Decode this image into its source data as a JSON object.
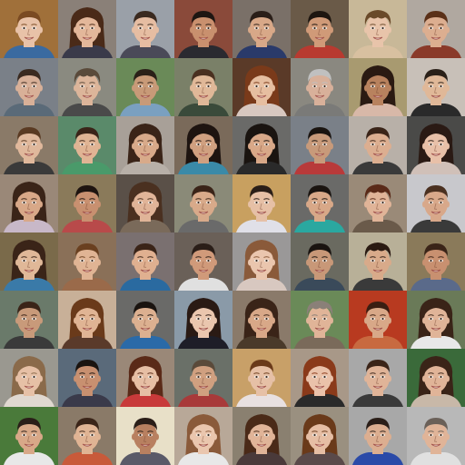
{
  "grid": {
    "rows": 8,
    "cols": 8,
    "cells": [
      {
        "bg": "#a0703a",
        "skin": "#e8c2a8",
        "hair": "#7a4a22",
        "shirt": "#3a6aa0",
        "hair_style": "short"
      },
      {
        "bg": "#8a8078",
        "skin": "#e3b79a",
        "hair": "#4a2a18",
        "shirt": "#3a3a4a",
        "hair_style": "long"
      },
      {
        "bg": "#9aa0a8",
        "skin": "#e6bda2",
        "hair": "#3a2a20",
        "shirt": "#4a4a58",
        "hair_style": "short"
      },
      {
        "bg": "#8a4a3a",
        "skin": "#c9906e",
        "hair": "#1e1612",
        "shirt": "#2a2a30",
        "hair_style": "short"
      },
      {
        "bg": "#7a7068",
        "skin": "#d8a888",
        "hair": "#2a1e18",
        "shirt": "#2a3a6a",
        "hair_style": "short"
      },
      {
        "bg": "#6a5a48",
        "skin": "#d09a78",
        "hair": "#1e1610",
        "shirt": "#b83a30",
        "hair_style": "short"
      },
      {
        "bg": "#c8b898",
        "skin": "#e8c4aa",
        "hair": "#6a4a2a",
        "shirt": "#d8c0a0",
        "hair_style": "curly"
      },
      {
        "bg": "#b0a8a0",
        "skin": "#dcae90",
        "hair": "#5a3018",
        "shirt": "#8a3a2a",
        "hair_style": "short"
      },
      {
        "bg": "#7a8088",
        "skin": "#d8b098",
        "hair": "#3a2a20",
        "shirt": "#5a6a78",
        "hair_style": "short"
      },
      {
        "bg": "#8a8a80",
        "skin": "#dcb59a",
        "hair": "#5a4a3a",
        "shirt": "#4a4a4a",
        "hair_style": "curly"
      },
      {
        "bg": "#6a8a58",
        "skin": "#c89a78",
        "hair": "#2a2018",
        "shirt": "#7aa0c0",
        "hair_style": "short"
      },
      {
        "bg": "#7a8068",
        "skin": "#e0b898",
        "hair": "#4a3020",
        "shirt": "#3a4a3a",
        "hair_style": "short"
      },
      {
        "bg": "#5a3a28",
        "skin": "#e6bea0",
        "hair": "#7a3a1a",
        "shirt": "#d8c8c0",
        "hair_style": "long"
      },
      {
        "bg": "#8a8880",
        "skin": "#d8b09a",
        "hair": "#c0c0c0",
        "shirt": "#7a7a78",
        "hair_style": "short"
      },
      {
        "bg": "#a89a70",
        "skin": "#b8825e",
        "hair": "#2a1a12",
        "shirt": "#d8b8a8",
        "hair_style": "long"
      },
      {
        "bg": "#c8c0b8",
        "skin": "#e0b898",
        "hair": "#2a2018",
        "shirt": "#2a2a2a",
        "hair_style": "short"
      },
      {
        "bg": "#8a7a68",
        "skin": "#e0b89c",
        "hair": "#5a3a22",
        "shirt": "#3a3a3a",
        "hair_style": "short"
      },
      {
        "bg": "#5a8a6a",
        "skin": "#e0b494",
        "hair": "#3a2418",
        "shirt": "#4a9a6a",
        "hair_style": "short"
      },
      {
        "bg": "#a8a098",
        "skin": "#d8aa8a",
        "hair": "#3a2418",
        "shirt": "#b8b0a8",
        "hair_style": "long"
      },
      {
        "bg": "#7a6a5a",
        "skin": "#d0a080",
        "hair": "#1e1410",
        "shirt": "#3a8aa8",
        "hair_style": "long"
      },
      {
        "bg": "#6a6a68",
        "skin": "#d8a888",
        "hair": "#1a1410",
        "shirt": "#2a2a2a",
        "hair_style": "long"
      },
      {
        "bg": "#7a8088",
        "skin": "#c89a7a",
        "hair": "#1a1410",
        "shirt": "#b83a3a",
        "hair_style": "short"
      },
      {
        "bg": "#b8b0a8",
        "skin": "#dcae90",
        "hair": "#3a2418",
        "shirt": "#3a3a3a",
        "hair_style": "short"
      },
      {
        "bg": "#4a4a48",
        "skin": "#e8c0a8",
        "hair": "#2a1a14",
        "shirt": "#d0c0b8",
        "hair_style": "long"
      },
      {
        "bg": "#9a8878",
        "skin": "#d8a888",
        "hair": "#3a2418",
        "shirt": "#c8b8c8",
        "hair_style": "long"
      },
      {
        "bg": "#8a7a5a",
        "skin": "#c89070",
        "hair": "#1e1410",
        "shirt": "#b84a4a",
        "hair_style": "short"
      },
      {
        "bg": "#5a5048",
        "skin": "#e0b498",
        "hair": "#4a3020",
        "shirt": "#7a6a5a",
        "hair_style": "long"
      },
      {
        "bg": "#8a8a78",
        "skin": "#d8aa8a",
        "hair": "#3a2418",
        "shirt": "#6a6a6a",
        "hair_style": "short"
      },
      {
        "bg": "#c8a060",
        "skin": "#e6c0a6",
        "hair": "#2a1e18",
        "shirt": "#e0e0e8",
        "hair_style": "short"
      },
      {
        "bg": "#6a6a68",
        "skin": "#d8a888",
        "hair": "#1a1410",
        "shirt": "#2aa8a0",
        "hair_style": "short"
      },
      {
        "bg": "#9a8a78",
        "skin": "#e0b498",
        "hair": "#5a2a18",
        "shirt": "#6a5a4a",
        "hair_style": "curly"
      },
      {
        "bg": "#c8c8cc",
        "skin": "#d8a88a",
        "hair": "#4a3020",
        "shirt": "#3a3a3a",
        "hair_style": "short"
      },
      {
        "bg": "#7a6a4a",
        "skin": "#e0b898",
        "hair": "#3a2418",
        "shirt": "#3a7aa8",
        "hair_style": "long"
      },
      {
        "bg": "#8a7058",
        "skin": "#e0b494",
        "hair": "#6a4020",
        "shirt": "#9a6a4a",
        "hair_style": "short"
      },
      {
        "bg": "#7a7070",
        "skin": "#e0b090",
        "hair": "#3a2418",
        "shirt": "#2a6aa0",
        "hair_style": "short"
      },
      {
        "bg": "#6a6058",
        "skin": "#d09a7a",
        "hair": "#2a1e18",
        "shirt": "#e0e0e0",
        "hair_style": "short"
      },
      {
        "bg": "#9a9898",
        "skin": "#eac6ae",
        "hair": "#8a5a3a",
        "shirt": "#d8c8c0",
        "hair_style": "long"
      },
      {
        "bg": "#6a6a60",
        "skin": "#c89878",
        "hair": "#1a1410",
        "shirt": "#3a4a5a",
        "hair_style": "short"
      },
      {
        "bg": "#b8b098",
        "skin": "#d8aa8a",
        "hair": "#2a1a12",
        "shirt": "#3a3a3a",
        "hair_style": "curly"
      },
      {
        "bg": "#8a7a5a",
        "skin": "#c89070",
        "hair": "#3a2418",
        "shirt": "#5a6a8a",
        "hair_style": "short"
      },
      {
        "bg": "#6a7a6a",
        "skin": "#c89a7a",
        "hair": "#3a2418",
        "shirt": "#3a3a3a",
        "hair_style": "short"
      },
      {
        "bg": "#c8b098",
        "skin": "#e0b494",
        "hair": "#6a3a1a",
        "shirt": "#5a3a2a",
        "hair_style": "long"
      },
      {
        "bg": "#6a6a68",
        "skin": "#dcb090",
        "hair": "#1a1410",
        "shirt": "#2a6aa8",
        "hair_style": "short"
      },
      {
        "bg": "#8a9aa8",
        "skin": "#eac6ae",
        "hair": "#2a1a14",
        "shirt": "#1e1e28",
        "hair_style": "long"
      },
      {
        "bg": "#8a7a6a",
        "skin": "#d8a888",
        "hair": "#3a2418",
        "shirt": "#4a3a2a",
        "hair_style": "long"
      },
      {
        "bg": "#6a8a58",
        "skin": "#e0b498",
        "hair": "#8a8078",
        "shirt": "#7a6a5a",
        "hair_style": "curly"
      },
      {
        "bg": "#b83a20",
        "skin": "#d8a888",
        "hair": "#3a1e12",
        "shirt": "#c86a40",
        "hair_style": "short"
      },
      {
        "bg": "#6a7a58",
        "skin": "#e0b498",
        "hair": "#3a2418",
        "shirt": "#e8e8e8",
        "hair_style": "long"
      },
      {
        "bg": "#9a9890",
        "skin": "#e6c0a6",
        "hair": "#8a6a4a",
        "shirt": "#e0d8d0",
        "hair_style": "long"
      },
      {
        "bg": "#5a6a7a",
        "skin": "#c89070",
        "hair": "#1a1410",
        "shirt": "#3a3a4a",
        "hair_style": "short"
      },
      {
        "bg": "#9a8878",
        "skin": "#e6bea4",
        "hair": "#5a2a18",
        "shirt": "#c83a3a",
        "hair_style": "long"
      },
      {
        "bg": "#6a7068",
        "skin": "#d0a080",
        "hair": "#5a4a3a",
        "shirt": "#a83a3a",
        "hair_style": "short"
      },
      {
        "bg": "#c8a068",
        "skin": "#e6c0a6",
        "hair": "#6a3a1a",
        "shirt": "#e8e0e0",
        "hair_style": "short"
      },
      {
        "bg": "#a89888",
        "skin": "#eac2aa",
        "hair": "#8a3a1a",
        "shirt": "#2a2a2a",
        "hair_style": "long"
      },
      {
        "bg": "#a8a8a8",
        "skin": "#e0b498",
        "hair": "#3a2418",
        "shirt": "#3a3a3a",
        "hair_style": "short"
      },
      {
        "bg": "#3a6a3a",
        "skin": "#e0b498",
        "hair": "#3a2418",
        "shirt": "#c8b8a8",
        "hair_style": "long"
      },
      {
        "bg": "#4a7a3a",
        "skin": "#d8a888",
        "hair": "#2a1e18",
        "shirt": "#e8e8e8",
        "hair_style": "short"
      },
      {
        "bg": "#8a7a68",
        "skin": "#e0b494",
        "hair": "#3a2418",
        "shirt": "#c85a3a",
        "hair_style": "short"
      },
      {
        "bg": "#e8e0c8",
        "skin": "#b88060",
        "hair": "#2a1e18",
        "shirt": "#5a5a68",
        "hair_style": "short"
      },
      {
        "bg": "#b8a898",
        "skin": "#eac6ae",
        "hair": "#8a5a3a",
        "shirt": "#e8e8e8",
        "hair_style": "long"
      },
      {
        "bg": "#8a8070",
        "skin": "#e0b498",
        "hair": "#4a2a18",
        "shirt": "#4a3a3a",
        "hair_style": "long"
      },
      {
        "bg": "#9a9080",
        "skin": "#e6bea4",
        "hair": "#6a3a1a",
        "shirt": "#5a4a4a",
        "hair_style": "long"
      },
      {
        "bg": "#a8a8a8",
        "skin": "#dcae90",
        "hair": "#2a1e18",
        "shirt": "#2a4aa8",
        "hair_style": "short"
      },
      {
        "bg": "#b8b8b8",
        "skin": "#e0b498",
        "hair": "#6a6058",
        "shirt": "#e0e0e0",
        "hair_style": "short"
      }
    ]
  }
}
